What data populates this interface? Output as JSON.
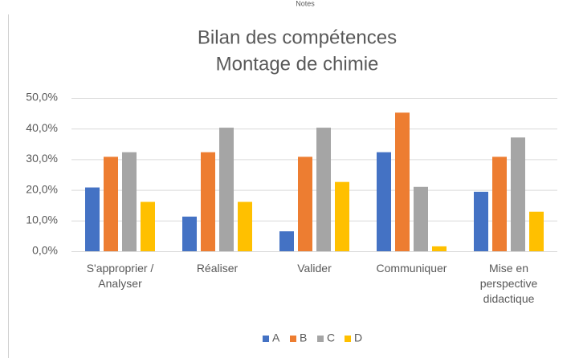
{
  "header": {
    "title": "Notes"
  },
  "chart_data": {
    "type": "bar",
    "title": "Bilan des compétences",
    "subtitle": "Montage de chimie",
    "categories": [
      "S'approprier /\nAnalyser",
      "Réaliser",
      "Valider",
      "Communiquer",
      "Mise en\nperspective\ndidactique"
    ],
    "series": [
      {
        "name": "A",
        "color": "#4472c4",
        "values": [
          20.8,
          11.3,
          6.5,
          32.3,
          19.4
        ]
      },
      {
        "name": "B",
        "color": "#ed7d31",
        "values": [
          30.8,
          32.3,
          30.8,
          45.2,
          30.8
        ]
      },
      {
        "name": "C",
        "color": "#a5a5a5",
        "values": [
          32.3,
          40.3,
          40.3,
          21.0,
          37.1
        ]
      },
      {
        "name": "D",
        "color": "#ffc000",
        "values": [
          16.1,
          16.1,
          22.6,
          1.6,
          12.9
        ]
      }
    ],
    "ylim": [
      0,
      50
    ],
    "yticks": [
      {
        "value": 0,
        "label": "0,0%"
      },
      {
        "value": 10,
        "label": "10,0%"
      },
      {
        "value": 20,
        "label": "20,0%"
      },
      {
        "value": 30,
        "label": "30,0%"
      },
      {
        "value": 40,
        "label": "40,0%"
      },
      {
        "value": 50,
        "label": "50,0%"
      }
    ],
    "grid": true,
    "legend": "bottom"
  }
}
